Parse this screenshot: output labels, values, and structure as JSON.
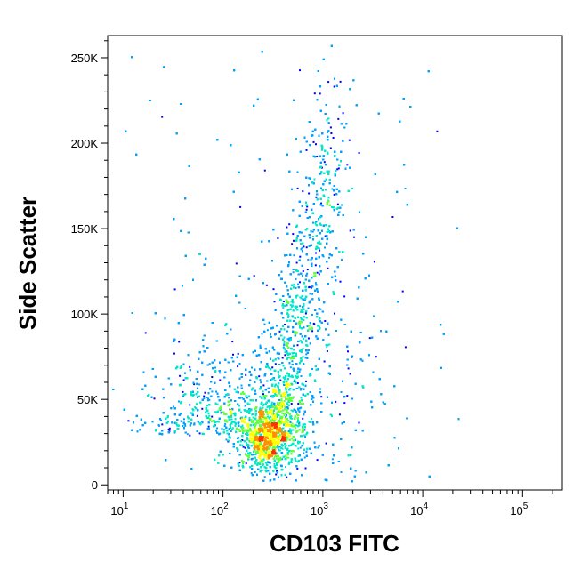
{
  "chart_data": {
    "type": "scatter",
    "subtype": "flow-cytometry-density-dot-plot",
    "title": "",
    "xlabel": "CD103 FITC",
    "ylabel": "Side Scatter",
    "x_scale": "log",
    "xlim": [
      7,
      250000
    ],
    "ylim": [
      -3000,
      263000
    ],
    "x_ticks": [
      {
        "value": 10,
        "base": "10",
        "exp": "1"
      },
      {
        "value": 100,
        "base": "10",
        "exp": "2"
      },
      {
        "value": 1000,
        "base": "10",
        "exp": "3"
      },
      {
        "value": 10000,
        "base": "10",
        "exp": "4"
      },
      {
        "value": 100000,
        "base": "10",
        "exp": "5"
      }
    ],
    "y_ticks": [
      {
        "value": 0,
        "label": "0"
      },
      {
        "value": 50000,
        "label": "50K"
      },
      {
        "value": 100000,
        "label": "100K"
      },
      {
        "value": 150000,
        "label": "150K"
      },
      {
        "value": 200000,
        "label": "200K"
      },
      {
        "value": 250000,
        "label": "250K"
      }
    ],
    "density_colors": [
      "#0000ff",
      "#00a0ff",
      "#00e8c8",
      "#60ff40",
      "#ffff00",
      "#ff9000",
      "#ff3000"
    ],
    "populations": [
      {
        "name_hint": "main arm",
        "x_from": 200,
        "x_to": 1200,
        "y_from": 25000,
        "y_to": 180000,
        "weight": 0.55
      },
      {
        "name_hint": "low-SSC cluster",
        "x_center": 280,
        "y_center": 28000,
        "weight": 0.25
      },
      {
        "name_hint": "negative cluster",
        "x_center": 80,
        "y_center": 40000,
        "weight": 0.2
      }
    ],
    "grid": false,
    "legend": "none"
  }
}
